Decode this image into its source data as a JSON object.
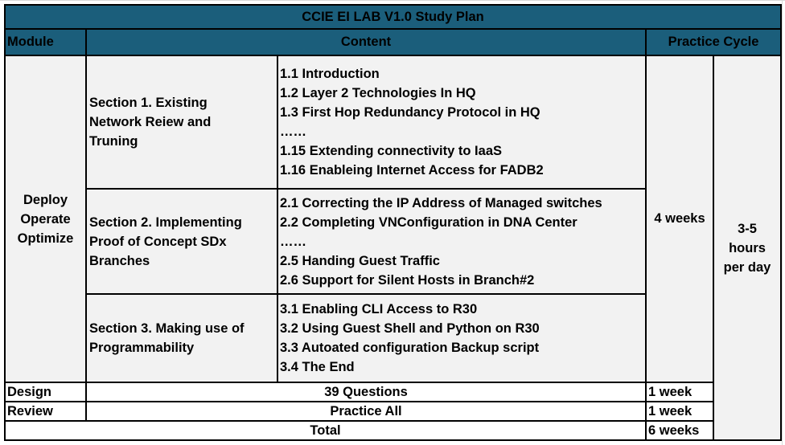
{
  "title": "CCIE EI LAB V1.0 Study Plan",
  "headers": {
    "module": "Module",
    "content": "Content",
    "practice_cycle": "Practice Cycle"
  },
  "deploy_module": [
    "Deploy",
    "Operate",
    "Optimize"
  ],
  "sections": [
    {
      "name": [
        "Section 1. Existing",
        "Network Reiew and",
        "Truning"
      ],
      "items": [
        "1.1 Introduction",
        "1.2 Layer 2 Technologies In HQ",
        "1.3 First Hop Redundancy Protocol in HQ",
        "……",
        "1.15 Extending connectivity to IaaS",
        "1.16 Enableing Internet Access for FADB2"
      ]
    },
    {
      "name": [
        "Section 2. Implementing",
        "Proof of Concept SDx",
        "Branches"
      ],
      "items": [
        "2.1 Correcting the IP Address of Managed switches",
        "2.2 Completing VNConfiguration in DNA Center",
        "……",
        "2.5 Handing Guest Traffic",
        "2.6 Support for Silent Hosts in Branch#2"
      ]
    },
    {
      "name": [
        "Section 3. Making use of",
        "Programmability"
      ],
      "items": [
        "3.1 Enabling CLI Access to R30",
        "3.2 Using Guest Shell and Python on R30",
        "3.3 Autoated configuration Backup script",
        "3.4 The End"
      ]
    }
  ],
  "deploy_duration": "4 weeks",
  "hours": [
    "3-5",
    "hours",
    "per day"
  ],
  "design": {
    "module": "Design",
    "content": "39 Questions",
    "duration": "1 week"
  },
  "review": {
    "module": "Review",
    "content": "Practice All",
    "duration": "1 week"
  },
  "total": {
    "label": "Total",
    "duration": "6 weeks"
  }
}
